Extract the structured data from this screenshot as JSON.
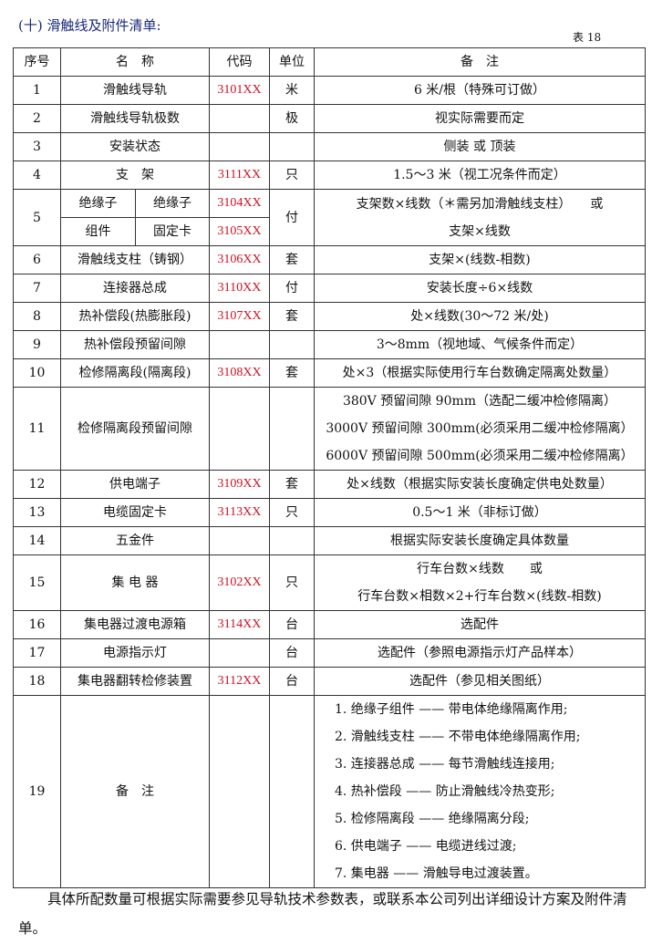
{
  "title": "(十)  滑触线及附件清单:",
  "table_no": "表 18",
  "header": [
    "序号",
    "名　称",
    "代码",
    "单位",
    "备　注"
  ],
  "colors": {
    "code": "#d01020",
    "title": "#1a2a7a"
  },
  "rows": [
    {
      "no": "1",
      "name": "滑触线导轨",
      "code": "3101XX",
      "unit": "米",
      "note": [
        "6 米/根（特殊可订做）"
      ]
    },
    {
      "no": "2",
      "name": "滑触线导轨极数",
      "code": "",
      "unit": "极",
      "note": [
        "视实际需要而定"
      ]
    },
    {
      "no": "3",
      "name": "安装状态",
      "code": "",
      "unit": "",
      "note": [
        "侧装 或 顶装"
      ]
    },
    {
      "no": "4",
      "name": "支　架",
      "code": "3111XX",
      "unit": "只",
      "note": [
        "1.5～3 米（视工况条件而定）"
      ]
    },
    {
      "no": "5",
      "group": [
        "绝缘子",
        "组件"
      ],
      "sub": [
        {
          "name": "绝缘子",
          "code": "3104XX"
        },
        {
          "name": "固定卡",
          "code": "3105XX"
        }
      ],
      "unit": "付",
      "note": [
        "支架数×线数（＊需另加滑触线支柱）　　或",
        "支架×线数"
      ]
    },
    {
      "no": "6",
      "name": "滑触线支柱（铸钢）",
      "code": "3106XX",
      "unit": "套",
      "note": [
        "支架×(线数-相数)"
      ]
    },
    {
      "no": "7",
      "name": "连接器总成",
      "code": "3110XX",
      "unit": "付",
      "note": [
        "安装长度÷6×线数"
      ]
    },
    {
      "no": "8",
      "name": "热补偿段(热膨胀段)",
      "code": "3107XX",
      "unit": "套",
      "note": [
        "处×线数(30～72 米/处)"
      ]
    },
    {
      "no": "9",
      "name": "热补偿段预留间隙",
      "code": "",
      "unit": "",
      "note": [
        "3～8mm（视地域、气候条件而定）"
      ]
    },
    {
      "no": "10",
      "name": "检修隔离段(隔离段)",
      "code": "3108XX",
      "unit": "套",
      "note": [
        "处×3（根据实际使用行车台数确定隔离处数量）"
      ]
    },
    {
      "no": "11",
      "name": "检修隔离段预留间隙",
      "code": "",
      "unit": "",
      "note": [
        "380V 预留间隙 90mm（选配二缓冲检修隔离）",
        "3000V 预留间隙 300mm(必须采用二缓冲检修隔离）",
        "6000V 预留间隙 500mm(必须采用二缓冲检修隔离）"
      ]
    },
    {
      "no": "12",
      "name": "供电端子",
      "code": "3109XX",
      "unit": "套",
      "note": [
        "处×线数（根据实际安装长度确定供电处数量）"
      ]
    },
    {
      "no": "13",
      "name": "电缆固定卡",
      "code": "3113XX",
      "unit": "只",
      "note": [
        "0.5～1 米（非标订做）"
      ]
    },
    {
      "no": "14",
      "name": "五金件",
      "code": "",
      "unit": "",
      "note": [
        "根据实际安装长度确定具体数量"
      ]
    },
    {
      "no": "15",
      "name": "集 电 器",
      "code": "3102XX",
      "unit": "只",
      "note": [
        "行车台数×线数　　或",
        "行车台数×相数×2+行车台数×(线数-相数)"
      ]
    },
    {
      "no": "16",
      "name": "集电器过渡电源箱",
      "code": "3114XX",
      "unit": "台",
      "note": [
        "选配件"
      ]
    },
    {
      "no": "17",
      "name": "电源指示灯",
      "code": "",
      "unit": "台",
      "note": [
        "选配件（参照电源指示灯产品样本）"
      ]
    },
    {
      "no": "18",
      "name": "集电器翻转检修装置",
      "code": "3112XX",
      "unit": "台",
      "note": [
        "选配件（参见相关图纸）"
      ]
    },
    {
      "no": "19",
      "name": "备　注",
      "code": "",
      "unit": "",
      "note": [
        "1.  绝缘子组件 ——  带电体绝缘隔离作用;",
        "2.  滑触线支柱 ——  不带电体绝缘隔离作用;",
        "3.  连接器总成 ——  每节滑触线连接用;",
        "4.  热补偿段 ——  防止滑触线冷热变形;",
        "5.  检修隔离段 ——  绝缘隔离分段;",
        "6.  供电端子 ——  电缆进线过渡;",
        "7.  集电器 ——  滑触导电过渡装置。"
      ]
    }
  ],
  "footer": "具体所配数量可根据实际需要参见导轨技术参数表，或联系本公司列出详细设计方案及附件清单。"
}
